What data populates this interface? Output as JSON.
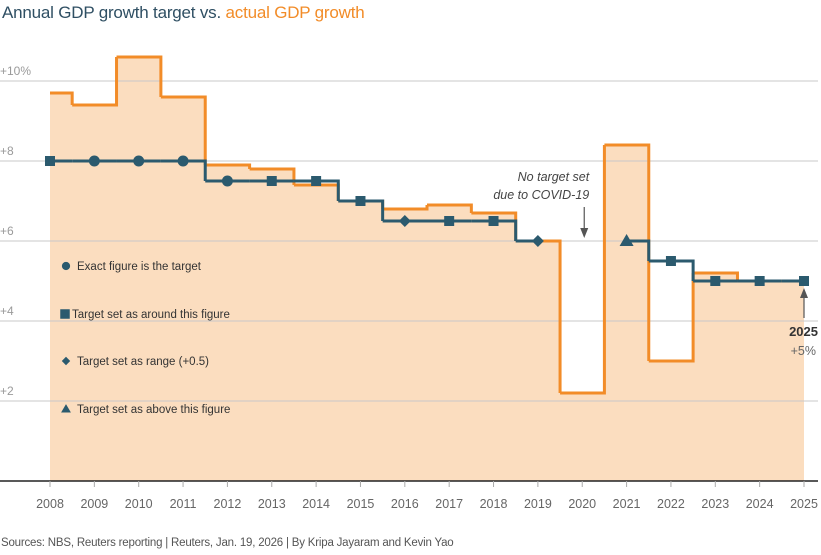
{
  "title": {
    "part1": "Annual GDP growth target vs. ",
    "part2": "actual GDP growth"
  },
  "colors": {
    "actual_line": "#f28c28",
    "actual_fill": "#fbddbf",
    "target": "#2b5a6e",
    "grid": "#c8c8c8",
    "axis": "#222222"
  },
  "source": "Sources: NBS, Reuters reporting | Reuters, Jan. 19, 2026 | By Kripa Jayaram and Kevin Yao",
  "chart_data": {
    "type": "line",
    "title": "Annual GDP growth target vs. actual GDP growth",
    "xlabel": "",
    "ylabel": "",
    "x": [
      2008,
      2009,
      2010,
      2011,
      2012,
      2013,
      2014,
      2015,
      2016,
      2017,
      2018,
      2019,
      2020,
      2021,
      2022,
      2023,
      2024,
      2025
    ],
    "ylim": [
      0,
      11
    ],
    "yticks": [
      {
        "value": 10,
        "label": "+10%"
      },
      {
        "value": 8,
        "label": "+8"
      },
      {
        "value": 6,
        "label": "+6"
      },
      {
        "value": 4,
        "label": "+4"
      },
      {
        "value": 2,
        "label": "+2"
      }
    ],
    "grid": true,
    "series": [
      {
        "name": "Actual GDP growth",
        "style": "step-area",
        "values": [
          9.7,
          9.4,
          10.6,
          9.6,
          7.9,
          7.8,
          7.4,
          7.0,
          6.8,
          6.9,
          6.7,
          6.0,
          2.2,
          8.4,
          3.0,
          5.2,
          5.0,
          5.0
        ]
      },
      {
        "name": "Annual GDP growth target",
        "style": "step-line-markers",
        "values": [
          8,
          8,
          8,
          8,
          7.5,
          7.5,
          7.5,
          7,
          6.5,
          6.5,
          6.5,
          6,
          null,
          6,
          5.5,
          5,
          5,
          5
        ],
        "markers": [
          "square",
          "circle",
          "circle",
          "circle",
          "circle",
          "square",
          "square",
          "square",
          "diamond",
          "square",
          "square",
          "diamond",
          null,
          "triangle",
          "square",
          "square",
          "square",
          "square"
        ]
      }
    ],
    "legend": {
      "placement": "left",
      "items": [
        {
          "marker": "circle",
          "label": "Exact figure is the target"
        },
        {
          "marker": "square",
          "label": "Target set as around this figure"
        },
        {
          "marker": "diamond",
          "label": "Target set as range (+0.5)"
        },
        {
          "marker": "triangle",
          "label": "Target set as above this figure"
        }
      ]
    },
    "annotations": [
      {
        "x": 2020,
        "lines": [
          "No target set",
          "due to COVID-19"
        ]
      },
      {
        "x": 2025,
        "year": "2025",
        "value": "+5%"
      }
    ]
  }
}
